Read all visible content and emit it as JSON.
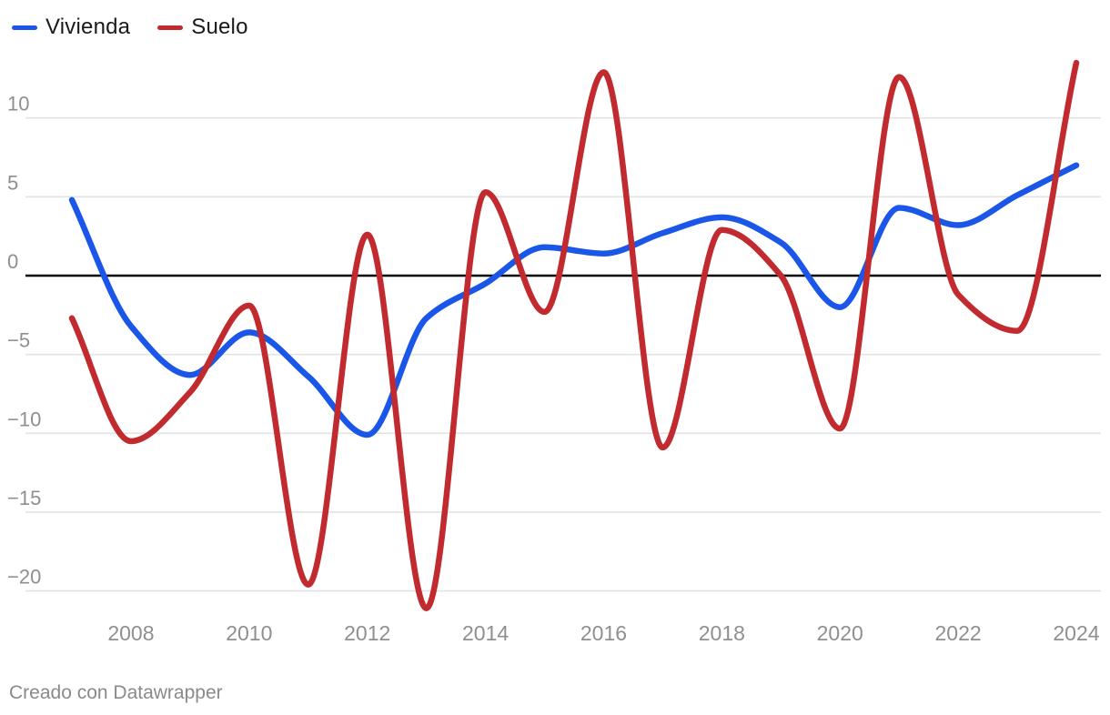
{
  "legend": {
    "items": [
      {
        "label": "Vivienda",
        "color": "#1a56e8"
      },
      {
        "label": "Suelo",
        "color": "#c12a2e"
      }
    ]
  },
  "footer": {
    "credit": "Creado con Datawrapper"
  },
  "chart_data": {
    "type": "line",
    "title": "",
    "xlabel": "",
    "ylabel": "",
    "x": [
      2007,
      2008,
      2009,
      2010,
      2011,
      2012,
      2013,
      2014,
      2015,
      2016,
      2017,
      2018,
      2019,
      2020,
      2021,
      2022,
      2023,
      2024
    ],
    "series": [
      {
        "name": "Vivienda",
        "color": "#1a56e8",
        "values": [
          4.8,
          -3.2,
          -6.3,
          -3.6,
          -6.4,
          -10.1,
          -2.7,
          -0.5,
          1.8,
          1.4,
          2.7,
          3.7,
          2.1,
          -2.0,
          4.3,
          3.2,
          5.1,
          7.0
        ]
      },
      {
        "name": "Suelo",
        "color": "#c12a2e",
        "values": [
          -2.7,
          -10.5,
          -7.4,
          -1.9,
          -19.6,
          2.6,
          -21.1,
          5.3,
          -2.3,
          12.9,
          -10.9,
          2.9,
          0.0,
          -9.7,
          12.6,
          -1.2,
          -3.5,
          13.5
        ]
      }
    ],
    "x_ticks": [
      2008,
      2010,
      2012,
      2014,
      2016,
      2018,
      2020,
      2022,
      2024
    ],
    "y_ticks": [
      10,
      5,
      0,
      -5,
      -10,
      -15,
      -20
    ],
    "xlim": [
      2007,
      2024.3
    ],
    "ylim": [
      -22,
      14
    ],
    "grid": "horizontal",
    "zero_line": true,
    "interpolation": "monotone-x",
    "legend_position": "top-left"
  },
  "colors": {
    "background": "#ffffff",
    "grid": "#e3e3e3",
    "zero_line": "#000000",
    "tick_label": "#8f8f8f",
    "legend_text": "#1a1a1a"
  }
}
